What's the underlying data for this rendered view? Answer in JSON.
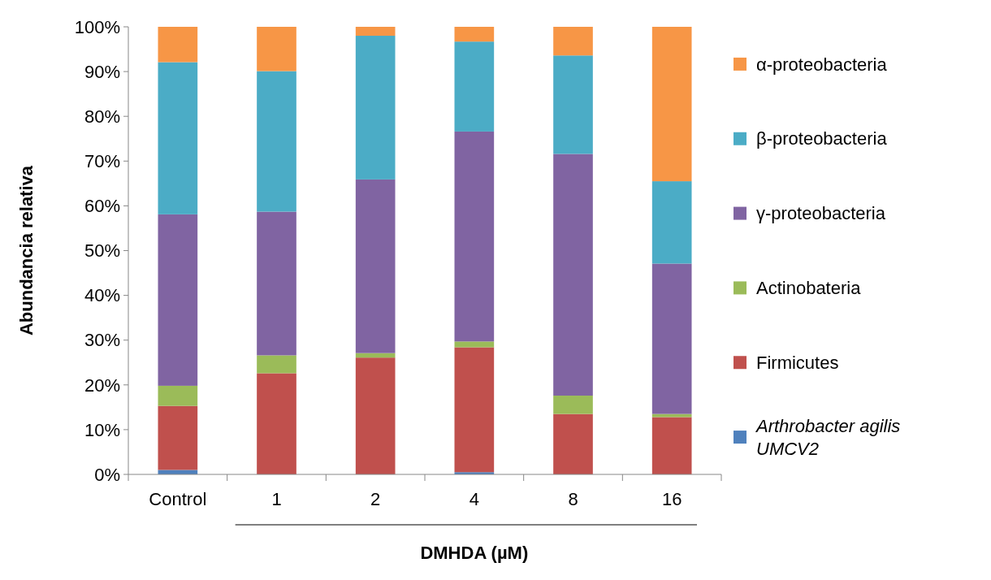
{
  "chart_data": {
    "type": "bar",
    "stacked": true,
    "ylabel": "Abundancia relativa",
    "xlabel": "DMHDA (µM)",
    "categories": [
      "Control",
      "1",
      "2",
      "4",
      "8",
      "16"
    ],
    "ylim": [
      0,
      100
    ],
    "yticks": [
      {
        "value": 0,
        "label": "0%"
      },
      {
        "value": 10,
        "label": "10%"
      },
      {
        "value": 20,
        "label": "20%"
      },
      {
        "value": 30,
        "label": "30%"
      },
      {
        "value": 40,
        "label": "40%"
      },
      {
        "value": 50,
        "label": "50%"
      },
      {
        "value": 60,
        "label": "60%"
      },
      {
        "value": 70,
        "label": "70%"
      },
      {
        "value": 80,
        "label": "80%"
      },
      {
        "value": 90,
        "label": "90%"
      },
      {
        "value": 100,
        "label": "100%"
      }
    ],
    "grid": false,
    "legend": "right",
    "series": [
      {
        "name": "Arthrobacter agilis UMCV2",
        "color": "#4f81bd",
        "values": [
          1.0,
          0,
          0,
          0.5,
          0,
          0
        ]
      },
      {
        "name": "Firmicutes",
        "color": "#c0504d",
        "values": [
          14.3,
          22.6,
          26.1,
          27.9,
          13.5,
          12.8
        ]
      },
      {
        "name": "Actinobateria",
        "color": "#9bbb59",
        "values": [
          4.5,
          4.0,
          1.0,
          1.3,
          4.1,
          0.7
        ]
      },
      {
        "name": "γ-proteobacteria",
        "color": "#8064a2",
        "values": [
          38.3,
          32.1,
          38.8,
          46.9,
          54.0,
          33.6
        ]
      },
      {
        "name": "β-proteobacteria",
        "color": "#4bacc6",
        "values": [
          34.0,
          31.4,
          32.1,
          20.1,
          22.0,
          18.4
        ]
      },
      {
        "name": "α-proteobacteria",
        "color": "#f79646",
        "values": [
          7.9,
          9.9,
          2.0,
          3.3,
          6.4,
          34.5
        ]
      }
    ]
  }
}
